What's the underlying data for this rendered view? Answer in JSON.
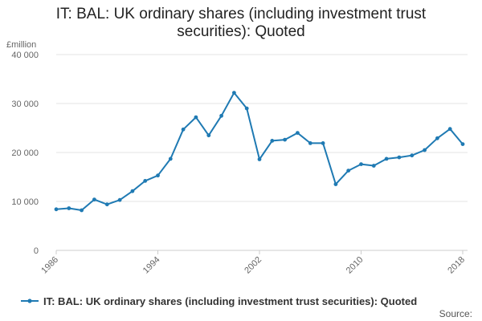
{
  "chart_data": {
    "type": "line",
    "title_lines": [
      "IT: BAL: UK ordinary shares (including investment trust",
      "securities): Quoted"
    ],
    "ylabel": "£million",
    "ylim": [
      0,
      40000
    ],
    "yticks": [
      0,
      10000,
      20000,
      30000,
      40000
    ],
    "ytick_labels": [
      "0",
      "10 000",
      "20 000",
      "30 000",
      "40 000"
    ],
    "xlim": [
      1986,
      2018
    ],
    "xticks": [
      1986,
      1994,
      2002,
      2010,
      2018
    ],
    "xtick_labels": [
      "1986",
      "1994",
      "2002",
      "2010",
      "2018"
    ],
    "grid": true,
    "series": [
      {
        "name": "IT: BAL: UK ordinary shares (including investment trust securities): Quoted",
        "color": "#1f7ab3",
        "x": [
          1986,
          1987,
          1988,
          1989,
          1990,
          1991,
          1992,
          1993,
          1994,
          1995,
          1996,
          1997,
          1998,
          1999,
          2000,
          2001,
          2002,
          2003,
          2004,
          2005,
          2006,
          2007,
          2008,
          2009,
          2010,
          2011,
          2012,
          2013,
          2014,
          2015,
          2016,
          2017,
          2018
        ],
        "values": [
          8400,
          8600,
          8200,
          10400,
          9400,
          10300,
          12100,
          14200,
          15300,
          18700,
          24700,
          27200,
          23500,
          27500,
          32200,
          29000,
          18600,
          22400,
          22600,
          24000,
          21900,
          21900,
          13500,
          16300,
          17600,
          17300,
          18700,
          19000,
          19400,
          20500,
          22900,
          24800,
          21700
        ]
      }
    ],
    "legend": {
      "position": "bottom",
      "label": "IT: BAL: UK ordinary shares (including investment trust securities): Quoted"
    },
    "source_label": "Source:"
  }
}
